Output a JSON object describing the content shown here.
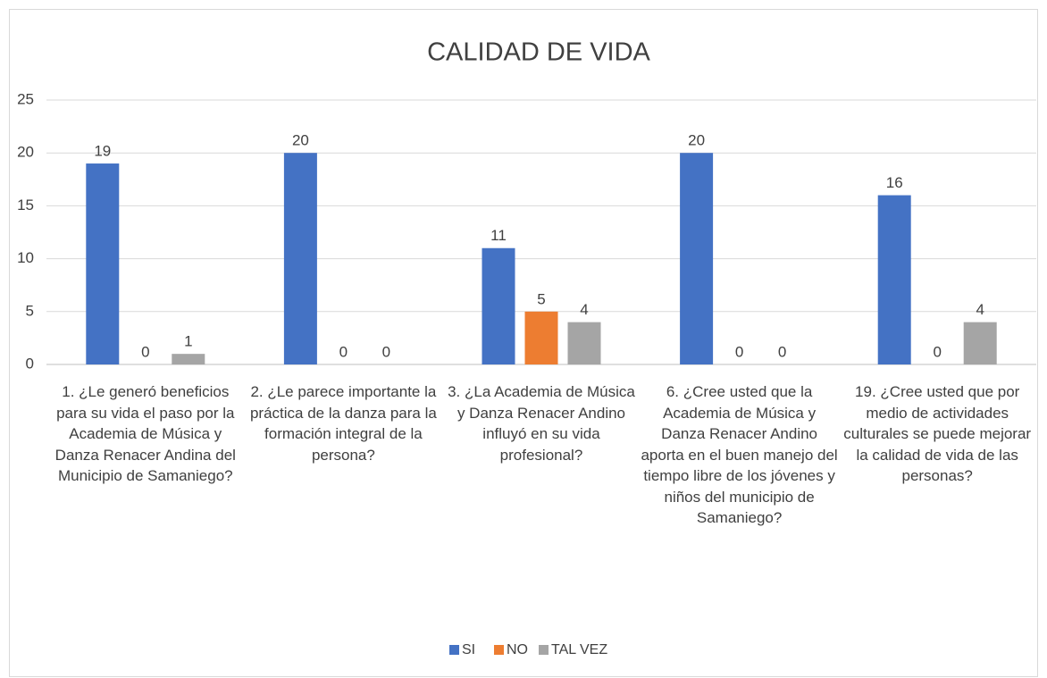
{
  "chart_data": {
    "type": "bar",
    "title": "CALIDAD DE VIDA",
    "categories": [
      "1. ¿Le generó beneficios para su vida el paso por la Academia de Música y Danza Renacer Andina del Municipio de Samaniego?",
      "2. ¿Le parece importante la práctica de la danza para la formación integral de la persona?",
      "3. ¿La Academia de Música y Danza Renacer Andino influyó en su vida profesional?",
      "6. ¿Cree usted que la Academia de Música y Danza Renacer Andino aporta en el buen manejo del tiempo libre de los jóvenes y niños del municipio de Samaniego?",
      "19. ¿Cree usted que por medio de actividades culturales se puede mejorar la calidad de vida de las personas?"
    ],
    "series": [
      {
        "name": "SI",
        "color": "#4472c4",
        "values": [
          19,
          20,
          11,
          20,
          16
        ]
      },
      {
        "name": "NO",
        "color": "#ed7d31",
        "values": [
          0,
          0,
          5,
          0,
          0
        ]
      },
      {
        "name": "TAL VEZ",
        "color": "#a5a5a5",
        "values": [
          1,
          0,
          4,
          0,
          4
        ]
      }
    ],
    "ylim": [
      0,
      25
    ],
    "yticks": [
      0,
      5,
      10,
      15,
      20,
      25
    ],
    "grid": true,
    "legend": "bottom"
  }
}
